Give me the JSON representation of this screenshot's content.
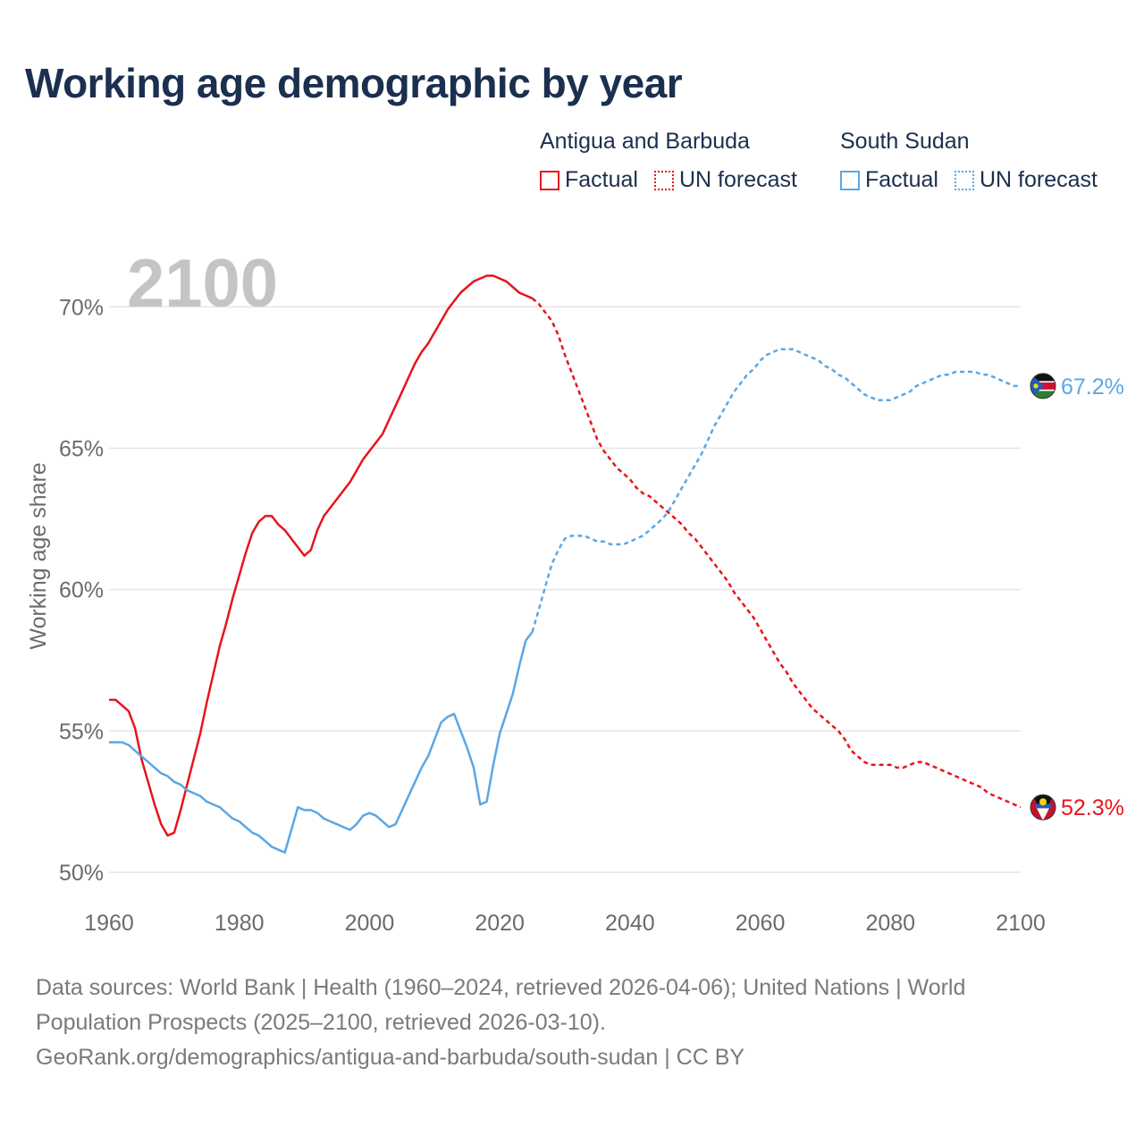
{
  "title": "Working age demographic by year",
  "year_label": "2100",
  "legend": {
    "groups": [
      {
        "name": "Antigua and Barbuda",
        "color": "#e8141a",
        "factual": "Factual",
        "forecast": "UN forecast"
      },
      {
        "name": "South Sudan",
        "color": "#5aa7e6",
        "factual": "Factual",
        "forecast": "UN forecast"
      }
    ]
  },
  "footer": {
    "line1": "Data sources: World Bank | Health (1960–2024, retrieved 2026-04-06); United Nations | World",
    "line2": "Population Prospects (2025–2100, retrieved 2026-03-10).",
    "line3": "GeoRank.org/demographics/antigua-and-barbuda/south-sudan | CC BY"
  },
  "chart_data": {
    "type": "line",
    "title": "Working age demographic by year",
    "xlabel": "",
    "ylabel": "Working age share",
    "xlim": [
      1960,
      2100
    ],
    "ylim": [
      50,
      72
    ],
    "x_ticks": [
      1960,
      1980,
      2000,
      2020,
      2040,
      2060,
      2080,
      2100
    ],
    "y_ticks": [
      50,
      55,
      60,
      65,
      70
    ],
    "y_tick_labels": [
      "50%",
      "55%",
      "60%",
      "65%",
      "70%"
    ],
    "grid": true,
    "series": [
      {
        "name": "Antigua and Barbuda",
        "color": "#e8141a",
        "end_label": "52.3%",
        "factual": [
          [
            1960,
            56.1
          ],
          [
            1961,
            56.1
          ],
          [
            1962,
            55.9
          ],
          [
            1963,
            55.7
          ],
          [
            1964,
            55.1
          ],
          [
            1965,
            54.0
          ],
          [
            1966,
            53.2
          ],
          [
            1967,
            52.4
          ],
          [
            1968,
            51.7
          ],
          [
            1969,
            51.3
          ],
          [
            1970,
            51.4
          ],
          [
            1971,
            52.2
          ],
          [
            1972,
            53.1
          ],
          [
            1973,
            54.0
          ],
          [
            1974,
            54.9
          ],
          [
            1975,
            56.0
          ],
          [
            1976,
            57.0
          ],
          [
            1977,
            58.0
          ],
          [
            1978,
            58.8
          ],
          [
            1979,
            59.7
          ],
          [
            1980,
            60.5
          ],
          [
            1981,
            61.3
          ],
          [
            1982,
            62.0
          ],
          [
            1983,
            62.4
          ],
          [
            1984,
            62.6
          ],
          [
            1985,
            62.6
          ],
          [
            1986,
            62.3
          ],
          [
            1987,
            62.1
          ],
          [
            1988,
            61.8
          ],
          [
            1989,
            61.5
          ],
          [
            1990,
            61.2
          ],
          [
            1991,
            61.4
          ],
          [
            1992,
            62.1
          ],
          [
            1993,
            62.6
          ],
          [
            1994,
            62.9
          ],
          [
            1995,
            63.2
          ],
          [
            1996,
            63.5
          ],
          [
            1997,
            63.8
          ],
          [
            1998,
            64.2
          ],
          [
            1999,
            64.6
          ],
          [
            2000,
            64.9
          ],
          [
            2001,
            65.2
          ],
          [
            2002,
            65.5
          ],
          [
            2003,
            66.0
          ],
          [
            2004,
            66.5
          ],
          [
            2005,
            67.0
          ],
          [
            2006,
            67.5
          ],
          [
            2007,
            68.0
          ],
          [
            2008,
            68.4
          ],
          [
            2009,
            68.7
          ],
          [
            2010,
            69.1
          ],
          [
            2011,
            69.5
          ],
          [
            2012,
            69.9
          ],
          [
            2013,
            70.2
          ],
          [
            2014,
            70.5
          ],
          [
            2015,
            70.7
          ],
          [
            2016,
            70.9
          ],
          [
            2017,
            71.0
          ],
          [
            2018,
            71.1
          ],
          [
            2019,
            71.1
          ],
          [
            2020,
            71.0
          ],
          [
            2021,
            70.9
          ],
          [
            2022,
            70.7
          ],
          [
            2023,
            70.5
          ],
          [
            2024,
            70.4
          ],
          [
            2025,
            70.3
          ]
        ],
        "forecast": [
          [
            2025,
            70.3
          ],
          [
            2026,
            70.1
          ],
          [
            2027,
            69.8
          ],
          [
            2028,
            69.5
          ],
          [
            2029,
            69.0
          ],
          [
            2030,
            68.3
          ],
          [
            2031,
            67.7
          ],
          [
            2032,
            67.1
          ],
          [
            2033,
            66.5
          ],
          [
            2034,
            65.9
          ],
          [
            2035,
            65.3
          ],
          [
            2036,
            64.9
          ],
          [
            2037,
            64.6
          ],
          [
            2038,
            64.3
          ],
          [
            2039,
            64.1
          ],
          [
            2040,
            63.9
          ],
          [
            2041,
            63.6
          ],
          [
            2042,
            63.4
          ],
          [
            2043,
            63.3
          ],
          [
            2044,
            63.1
          ],
          [
            2045,
            62.9
          ],
          [
            2046,
            62.7
          ],
          [
            2047,
            62.5
          ],
          [
            2048,
            62.3
          ],
          [
            2049,
            62.0
          ],
          [
            2050,
            61.8
          ],
          [
            2051,
            61.5
          ],
          [
            2052,
            61.2
          ],
          [
            2053,
            60.9
          ],
          [
            2054,
            60.6
          ],
          [
            2055,
            60.3
          ],
          [
            2056,
            59.9
          ],
          [
            2057,
            59.6
          ],
          [
            2058,
            59.3
          ],
          [
            2059,
            59.0
          ],
          [
            2060,
            58.6
          ],
          [
            2061,
            58.2
          ],
          [
            2062,
            57.8
          ],
          [
            2063,
            57.4
          ],
          [
            2064,
            57.1
          ],
          [
            2065,
            56.7
          ],
          [
            2066,
            56.4
          ],
          [
            2067,
            56.1
          ],
          [
            2068,
            55.8
          ],
          [
            2069,
            55.6
          ],
          [
            2070,
            55.4
          ],
          [
            2071,
            55.2
          ],
          [
            2072,
            55.0
          ],
          [
            2073,
            54.7
          ],
          [
            2074,
            54.3
          ],
          [
            2075,
            54.1
          ],
          [
            2076,
            53.9
          ],
          [
            2077,
            53.8
          ],
          [
            2078,
            53.8
          ],
          [
            2079,
            53.8
          ],
          [
            2080,
            53.8
          ],
          [
            2081,
            53.7
          ],
          [
            2082,
            53.7
          ],
          [
            2083,
            53.8
          ],
          [
            2084,
            53.9
          ],
          [
            2085,
            53.9
          ],
          [
            2086,
            53.8
          ],
          [
            2087,
            53.7
          ],
          [
            2088,
            53.6
          ],
          [
            2089,
            53.5
          ],
          [
            2090,
            53.4
          ],
          [
            2091,
            53.3
          ],
          [
            2092,
            53.2
          ],
          [
            2093,
            53.1
          ],
          [
            2094,
            53.0
          ],
          [
            2095,
            52.8
          ],
          [
            2096,
            52.7
          ],
          [
            2097,
            52.6
          ],
          [
            2098,
            52.5
          ],
          [
            2099,
            52.4
          ],
          [
            2100,
            52.3
          ]
        ]
      },
      {
        "name": "South Sudan",
        "color": "#5aa7e6",
        "end_label": "67.2%",
        "factual": [
          [
            1960,
            54.6
          ],
          [
            1961,
            54.6
          ],
          [
            1962,
            54.6
          ],
          [
            1963,
            54.5
          ],
          [
            1964,
            54.3
          ],
          [
            1965,
            54.1
          ],
          [
            1966,
            53.9
          ],
          [
            1967,
            53.7
          ],
          [
            1968,
            53.5
          ],
          [
            1969,
            53.4
          ],
          [
            1970,
            53.2
          ],
          [
            1971,
            53.1
          ],
          [
            1972,
            52.9
          ],
          [
            1973,
            52.8
          ],
          [
            1974,
            52.7
          ],
          [
            1975,
            52.5
          ],
          [
            1976,
            52.4
          ],
          [
            1977,
            52.3
          ],
          [
            1978,
            52.1
          ],
          [
            1979,
            51.9
          ],
          [
            1980,
            51.8
          ],
          [
            1981,
            51.6
          ],
          [
            1982,
            51.4
          ],
          [
            1983,
            51.3
          ],
          [
            1984,
            51.1
          ],
          [
            1985,
            50.9
          ],
          [
            1986,
            50.8
          ],
          [
            1987,
            50.7
          ],
          [
            1988,
            51.5
          ],
          [
            1989,
            52.3
          ],
          [
            1990,
            52.2
          ],
          [
            1991,
            52.2
          ],
          [
            1992,
            52.1
          ],
          [
            1993,
            51.9
          ],
          [
            1994,
            51.8
          ],
          [
            1995,
            51.7
          ],
          [
            1996,
            51.6
          ],
          [
            1997,
            51.5
          ],
          [
            1998,
            51.7
          ],
          [
            1999,
            52.0
          ],
          [
            2000,
            52.1
          ],
          [
            2001,
            52.0
          ],
          [
            2002,
            51.8
          ],
          [
            2003,
            51.6
          ],
          [
            2004,
            51.7
          ],
          [
            2005,
            52.2
          ],
          [
            2006,
            52.7
          ],
          [
            2007,
            53.2
          ],
          [
            2008,
            53.7
          ],
          [
            2009,
            54.1
          ],
          [
            2010,
            54.7
          ],
          [
            2011,
            55.3
          ],
          [
            2012,
            55.5
          ],
          [
            2013,
            55.6
          ],
          [
            2014,
            55.0
          ],
          [
            2015,
            54.4
          ],
          [
            2016,
            53.7
          ],
          [
            2017,
            52.4
          ],
          [
            2018,
            52.5
          ],
          [
            2019,
            53.8
          ],
          [
            2020,
            54.9
          ],
          [
            2021,
            55.6
          ],
          [
            2022,
            56.3
          ],
          [
            2023,
            57.3
          ],
          [
            2024,
            58.2
          ],
          [
            2025,
            58.5
          ]
        ],
        "forecast": [
          [
            2025,
            58.5
          ],
          [
            2026,
            59.3
          ],
          [
            2027,
            60.1
          ],
          [
            2028,
            60.9
          ],
          [
            2029,
            61.4
          ],
          [
            2030,
            61.8
          ],
          [
            2031,
            61.9
          ],
          [
            2032,
            61.9
          ],
          [
            2033,
            61.9
          ],
          [
            2034,
            61.8
          ],
          [
            2035,
            61.7
          ],
          [
            2036,
            61.7
          ],
          [
            2037,
            61.6
          ],
          [
            2038,
            61.6
          ],
          [
            2039,
            61.6
          ],
          [
            2040,
            61.7
          ],
          [
            2041,
            61.8
          ],
          [
            2042,
            61.9
          ],
          [
            2043,
            62.1
          ],
          [
            2044,
            62.3
          ],
          [
            2045,
            62.5
          ],
          [
            2046,
            62.8
          ],
          [
            2047,
            63.2
          ],
          [
            2048,
            63.6
          ],
          [
            2049,
            64.0
          ],
          [
            2050,
            64.4
          ],
          [
            2051,
            64.8
          ],
          [
            2052,
            65.3
          ],
          [
            2053,
            65.8
          ],
          [
            2054,
            66.2
          ],
          [
            2055,
            66.6
          ],
          [
            2056,
            67.0
          ],
          [
            2057,
            67.3
          ],
          [
            2058,
            67.6
          ],
          [
            2059,
            67.8
          ],
          [
            2060,
            68.1
          ],
          [
            2061,
            68.3
          ],
          [
            2062,
            68.4
          ],
          [
            2063,
            68.5
          ],
          [
            2064,
            68.5
          ],
          [
            2065,
            68.5
          ],
          [
            2066,
            68.4
          ],
          [
            2067,
            68.3
          ],
          [
            2068,
            68.2
          ],
          [
            2069,
            68.1
          ],
          [
            2070,
            67.9
          ],
          [
            2071,
            67.8
          ],
          [
            2072,
            67.6
          ],
          [
            2073,
            67.5
          ],
          [
            2074,
            67.3
          ],
          [
            2075,
            67.1
          ],
          [
            2076,
            66.9
          ],
          [
            2077,
            66.8
          ],
          [
            2078,
            66.7
          ],
          [
            2079,
            66.7
          ],
          [
            2080,
            66.7
          ],
          [
            2081,
            66.8
          ],
          [
            2082,
            66.9
          ],
          [
            2083,
            67.0
          ],
          [
            2084,
            67.2
          ],
          [
            2085,
            67.3
          ],
          [
            2086,
            67.4
          ],
          [
            2087,
            67.5
          ],
          [
            2088,
            67.6
          ],
          [
            2089,
            67.6
          ],
          [
            2090,
            67.7
          ],
          [
            2091,
            67.7
          ],
          [
            2092,
            67.7
          ],
          [
            2093,
            67.7
          ],
          [
            2094,
            67.6
          ],
          [
            2095,
            67.6
          ],
          [
            2096,
            67.5
          ],
          [
            2097,
            67.4
          ],
          [
            2098,
            67.3
          ],
          [
            2099,
            67.2
          ],
          [
            2100,
            67.2
          ]
        ]
      }
    ]
  }
}
